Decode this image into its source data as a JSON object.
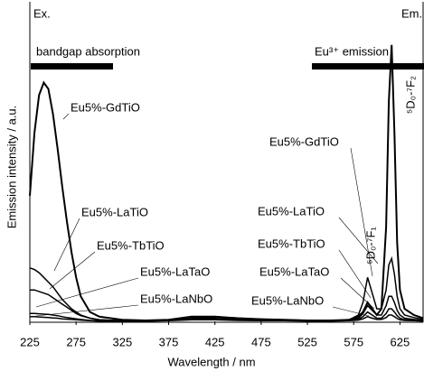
{
  "chart_data": {
    "type": "line",
    "x_label": "Wavelength / nm",
    "y_label": "Emission intensity / a.u.",
    "annotations": [
      "Ex.",
      "Em.",
      "bandgap absorption",
      "Eu³⁺ emission",
      "⁵D₀-⁷F₁",
      "⁵D₀-⁷F₂"
    ],
    "x": [
      225,
      230,
      235,
      240,
      245,
      250,
      255,
      260,
      265,
      270,
      275,
      280,
      290,
      300,
      325,
      350,
      375,
      400,
      425,
      450,
      475,
      500,
      525,
      550,
      570,
      580,
      585,
      590,
      595,
      600,
      605,
      610,
      613,
      616,
      619,
      622,
      625,
      630,
      640,
      650
    ],
    "series": [
      {
        "name": "Eu5%-GdTiO",
        "color": "#000000",
        "values": [
          40,
          60,
          72,
          76,
          74,
          66,
          55,
          43,
          32,
          22,
          14,
          8,
          3,
          1.5,
          0.5,
          0.3,
          0.5,
          1.5,
          1.5,
          1,
          0.7,
          0.5,
          0.3,
          0.3,
          0.5,
          1.5,
          3,
          6,
          4,
          2,
          4,
          30,
          70,
          88,
          60,
          25,
          10,
          4,
          2,
          1
        ]
      },
      {
        "name": "Eu5%-LaTiO",
        "color": "#000000",
        "values": [
          17,
          16.5,
          15.5,
          14,
          12.5,
          11,
          9,
          7,
          5.5,
          4,
          3,
          2,
          1,
          0.5,
          0.2,
          0.2,
          0.5,
          1.5,
          1.5,
          1,
          0.7,
          0.5,
          0.3,
          0.3,
          0.5,
          2,
          6,
          14,
          9,
          4,
          4,
          10,
          18,
          20,
          15,
          8,
          4,
          2,
          1.2,
          0.6
        ]
      },
      {
        "name": "Eu5%-TbTiO",
        "color": "#000000",
        "values": [
          10,
          10,
          9.5,
          9,
          8.5,
          7.5,
          6.5,
          5.5,
          4.5,
          3.5,
          2.5,
          1.8,
          1,
          0.5,
          0.2,
          0.2,
          0.5,
          1.2,
          1.2,
          0.8,
          0.6,
          0.4,
          0.3,
          0.3,
          0.4,
          1,
          2.5,
          5,
          3.5,
          2,
          2,
          5,
          8,
          8,
          6,
          3.5,
          2,
          1,
          0.6,
          0.3
        ]
      },
      {
        "name": "Eu5%-LaTaO",
        "color": "#000000",
        "values": [
          2.5,
          2.5,
          2.4,
          2.3,
          2.2,
          2,
          1.8,
          1.5,
          1.2,
          1,
          0.8,
          0.6,
          0.3,
          0.2,
          0.1,
          0.1,
          0.3,
          0.8,
          0.8,
          0.5,
          0.4,
          0.3,
          0.2,
          0.2,
          0.3,
          0.6,
          1.5,
          3,
          2,
          1,
          1,
          2.5,
          4,
          4,
          3,
          1.8,
          1,
          0.5,
          0.3,
          0.2
        ]
      },
      {
        "name": "Eu5%-LaNbO",
        "color": "#000000",
        "values": [
          1.5,
          1.5,
          1.4,
          1.3,
          1.2,
          1.1,
          1,
          0.8,
          0.7,
          0.6,
          0.5,
          0.4,
          0.2,
          0.1,
          0.1,
          0.1,
          0.2,
          0.5,
          0.5,
          0.3,
          0.2,
          0.2,
          0.1,
          0.1,
          0.2,
          0.4,
          0.8,
          1.5,
          1,
          0.6,
          0.6,
          1.2,
          2,
          2,
          1.5,
          0.9,
          0.5,
          0.3,
          0.2,
          0.1
        ]
      }
    ],
    "xlim": [
      225,
      650
    ],
    "xticks": [
      225,
      275,
      325,
      375,
      425,
      475,
      525,
      575,
      625
    ],
    "ylim": [
      0,
      100
    ]
  }
}
